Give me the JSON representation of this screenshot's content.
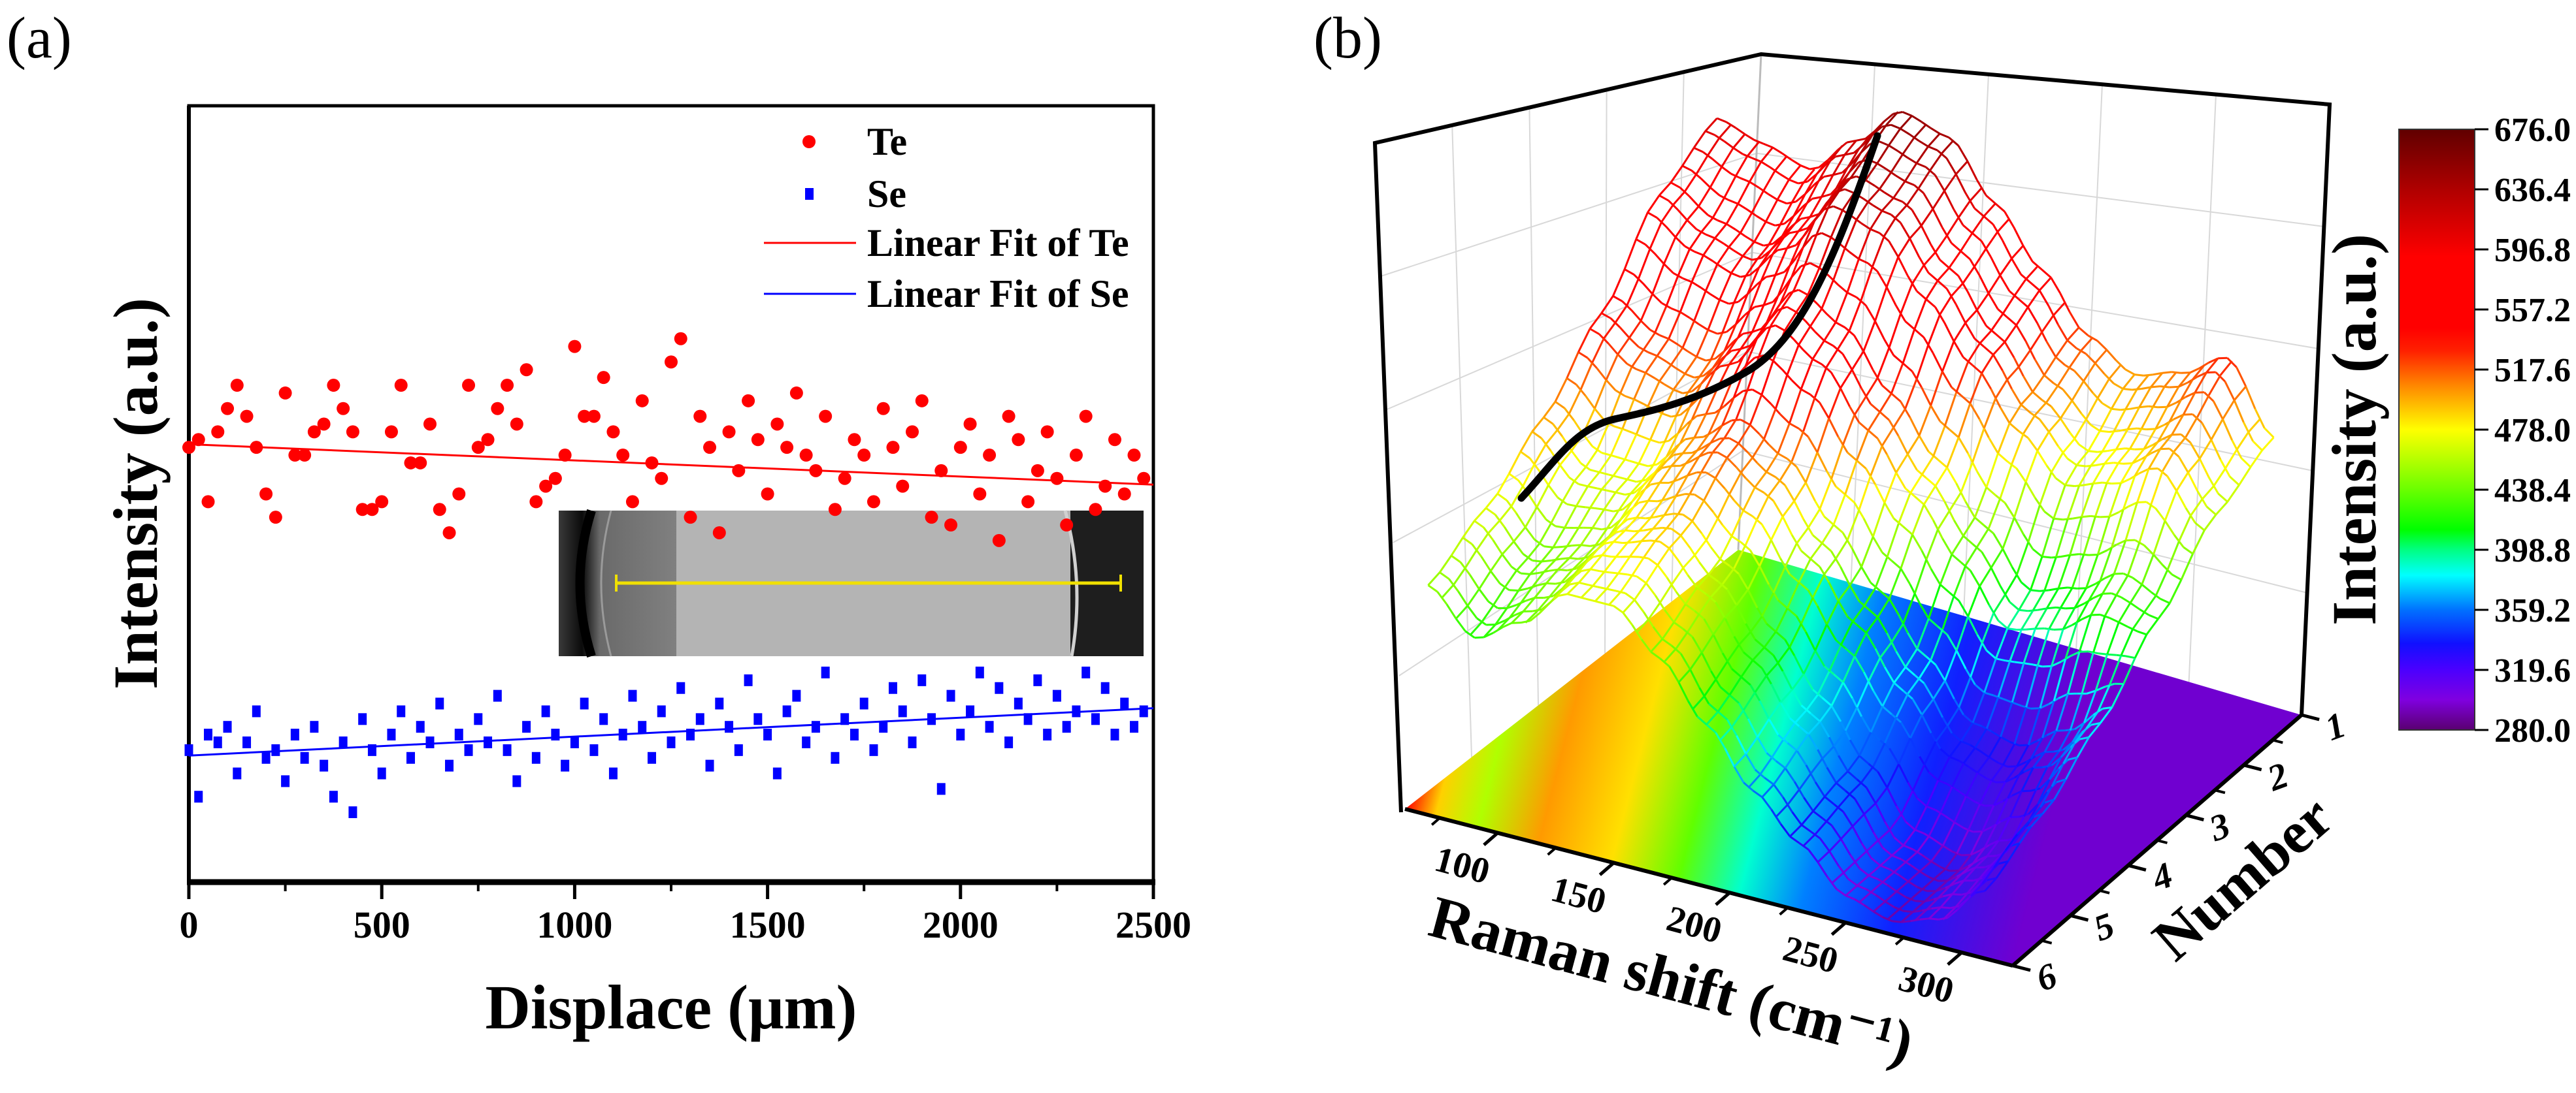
{
  "chart_data": [
    {
      "type": "scatter",
      "panel_label": "(a)",
      "xlabel": "Displace (μm)",
      "ylabel": "Intensity (a.u.)",
      "xlim": [
        0,
        2500
      ],
      "ylim": [
        0,
        100
      ],
      "xticks": [
        "0",
        "500",
        "1000",
        "1500",
        "2000",
        "2500"
      ],
      "xtick_values": [
        0,
        500,
        1000,
        1500,
        2000,
        2500
      ],
      "x_start": 0,
      "x_step": 25,
      "legend_position": "top-right",
      "series": [
        {
          "name": "Te",
          "color": "#ff0000",
          "marker": "circle",
          "y": [
            56,
            57,
            49,
            58,
            61,
            64,
            60,
            56,
            50,
            47,
            63,
            55,
            55,
            58,
            59,
            64,
            61,
            58,
            48,
            48,
            49,
            58,
            64,
            54,
            54,
            59,
            48,
            45,
            50,
            64,
            56,
            57,
            61,
            64,
            59,
            66,
            49,
            51,
            52,
            55,
            69,
            60,
            60,
            65,
            58,
            55,
            49,
            62,
            54,
            52,
            67,
            70,
            47,
            60,
            56,
            45,
            58,
            53,
            62,
            57,
            50,
            59,
            56,
            63,
            55,
            53,
            60,
            48,
            52,
            57,
            55,
            49,
            61,
            56,
            51,
            58,
            62,
            47,
            53,
            46,
            56,
            59,
            50,
            55,
            44,
            60,
            57,
            49,
            53,
            58,
            52,
            46,
            55,
            60,
            48,
            51,
            57,
            50,
            55,
            52
          ]
        },
        {
          "name": "Se",
          "color": "#0000ff",
          "marker": "square",
          "y": [
            17,
            11,
            19,
            18,
            20,
            14,
            18,
            22,
            16,
            17,
            13,
            19,
            16,
            20,
            15,
            11,
            18,
            9,
            21,
            17,
            14,
            19,
            22,
            16,
            20,
            18,
            23,
            15,
            19,
            17,
            21,
            18,
            24,
            17,
            13,
            20,
            16,
            22,
            19,
            15,
            18,
            23,
            17,
            21,
            14,
            19,
            24,
            20,
            16,
            22,
            18,
            25,
            19,
            21,
            15,
            23,
            20,
            17,
            26,
            21,
            19,
            14,
            22,
            24,
            18,
            20,
            27,
            16,
            21,
            19,
            23,
            17,
            20,
            25,
            22,
            18,
            26,
            21,
            12,
            24,
            19,
            22,
            27,
            20,
            25,
            18,
            23,
            21,
            26,
            19,
            24,
            20,
            22,
            27,
            21,
            25,
            19,
            23,
            20,
            22
          ]
        }
      ],
      "fits": [
        {
          "name": "Linear Fit of Te",
          "color": "#ff0000",
          "x": [
            0,
            2500
          ],
          "y": [
            56.4,
            51.2
          ]
        },
        {
          "name": "Linear Fit of Se",
          "color": "#0000ff",
          "x": [
            0,
            2500
          ],
          "y": [
            16.3,
            22.4
          ]
        }
      ]
    },
    {
      "type": "surface",
      "panel_label": "(b)",
      "xlabel": "Raman shift (cm⁻¹)",
      "ylabel": "Number",
      "zlabel": "Intensity (a.u.)",
      "xlim": [
        60,
        322
      ],
      "xticks": [
        "100",
        "150",
        "200",
        "250",
        "300"
      ],
      "xtick_values": [
        100,
        150,
        200,
        250,
        300
      ],
      "yticks": [
        "1",
        "2",
        "3",
        "4",
        "5",
        "6"
      ],
      "ytick_values": [
        1,
        2,
        3,
        4,
        5,
        6
      ],
      "colorbar": {
        "min": 280,
        "max": 676,
        "ticks": [
          "676.0",
          "636.4",
          "596.8",
          "557.2",
          "517.6",
          "478.0",
          "438.4",
          "398.8",
          "359.2",
          "319.6",
          "280.0"
        ],
        "colormap": [
          {
            "value": 280,
            "color": "#5a0070"
          },
          {
            "value": 300,
            "color": "#8000e0"
          },
          {
            "value": 320,
            "color": "#4a00ff"
          },
          {
            "value": 337,
            "color": "#1010ff"
          },
          {
            "value": 359,
            "color": "#0070ff"
          },
          {
            "value": 382,
            "color": "#00ffff"
          },
          {
            "value": 399,
            "color": "#00ff80"
          },
          {
            "value": 412,
            "color": "#00ff00"
          },
          {
            "value": 440,
            "color": "#70ff00"
          },
          {
            "value": 478,
            "color": "#ffff00"
          },
          {
            "value": 505,
            "color": "#ff9000"
          },
          {
            "value": 530,
            "color": "#ff2000"
          },
          {
            "value": 545,
            "color": "#ff0000"
          },
          {
            "value": 592,
            "color": "#ff0000"
          },
          {
            "value": 636,
            "color": "#b00000"
          },
          {
            "value": 676,
            "color": "#600000"
          }
        ]
      },
      "surface": {
        "raman_shift": [
          70,
          90,
          110,
          130,
          150,
          170,
          190,
          210,
          230,
          250,
          270,
          290,
          310
        ],
        "number": [
          1,
          2,
          3,
          4,
          5,
          6
        ],
        "intensity": [
          [
            610,
            600,
            590,
            620,
            650,
            640,
            600,
            560,
            520,
            500,
            510,
            530,
            480
          ],
          [
            590,
            570,
            560,
            590,
            630,
            620,
            580,
            540,
            500,
            470,
            480,
            500,
            460
          ],
          [
            540,
            520,
            510,
            540,
            580,
            560,
            520,
            480,
            440,
            400,
            410,
            430,
            420
          ],
          [
            500,
            470,
            470,
            500,
            520,
            500,
            460,
            420,
            380,
            340,
            330,
            350,
            380
          ],
          [
            470,
            440,
            450,
            480,
            490,
            460,
            420,
            380,
            340,
            300,
            290,
            310,
            350
          ],
          [
            450,
            420,
            440,
            470,
            470,
            440,
            400,
            360,
            330,
            300,
            290,
            300,
            330
          ]
        ]
      }
    }
  ]
}
